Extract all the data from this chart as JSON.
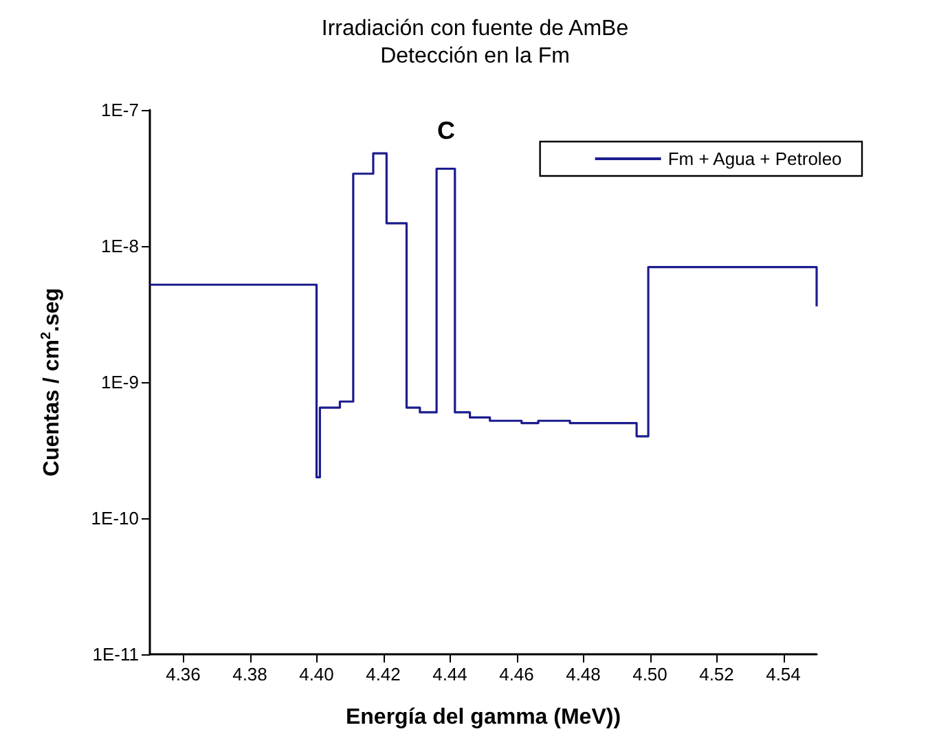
{
  "chart_data": {
    "type": "step",
    "title": "Irradiación con fuente de AmBe",
    "subtitle": "Detección en la Fm",
    "xlabel": "Energía del gamma (MeV))",
    "ylabel": "Cuentas / cm$^{2}$.seg",
    "x": [
      4.35,
      4.4,
      4.401,
      4.407,
      4.411,
      4.417,
      4.421,
      4.427,
      4.431,
      4.436,
      4.4415,
      4.446,
      4.452,
      4.4615,
      4.4665,
      4.476,
      4.496,
      4.4995,
      4.55
    ],
    "series": [
      {
        "name": "Fm + Agua + Petroleo",
        "color": "#1c1c8f",
        "values": [
          5.2e-09,
          2e-10,
          6.5e-10,
          7.2e-10,
          3.4e-08,
          4.8e-08,
          1.47e-08,
          6.5e-10,
          6e-10,
          3.7e-08,
          6e-10,
          5.5e-10,
          5.2e-10,
          5e-10,
          5.2e-10,
          5e-10,
          4e-10,
          7e-09,
          3.6e-09
        ]
      }
    ],
    "annotations": [
      "C"
    ],
    "xlim": [
      4.35,
      4.55
    ],
    "xticks": [
      {
        "value": 4.36,
        "label": "4.36"
      },
      {
        "value": 4.38,
        "label": "4.38"
      },
      {
        "value": 4.4,
        "label": "4.40"
      },
      {
        "value": 4.42,
        "label": "4.42"
      },
      {
        "value": 4.44,
        "label": "4.44"
      },
      {
        "value": 4.46,
        "label": "4.46"
      },
      {
        "value": 4.48,
        "label": "4.48"
      },
      {
        "value": 4.5,
        "label": "4.50"
      },
      {
        "value": 4.52,
        "label": "4.52"
      },
      {
        "value": 4.54,
        "label": "4.54"
      }
    ],
    "ylim": [
      1e-11,
      1e-07
    ],
    "yticks": [
      {
        "value": 1e-11,
        "label": "1E-11"
      },
      {
        "value": 1e-10,
        "label": "1E-10"
      },
      {
        "value": 1e-09,
        "label": "1E-9"
      },
      {
        "value": 1e-08,
        "label": "1E-8"
      },
      {
        "value": 1e-07,
        "label": "1E-7"
      }
    ],
    "log": "y",
    "grid": false,
    "legend": "top right",
    "line_style": "solid",
    "marker": "none"
  }
}
